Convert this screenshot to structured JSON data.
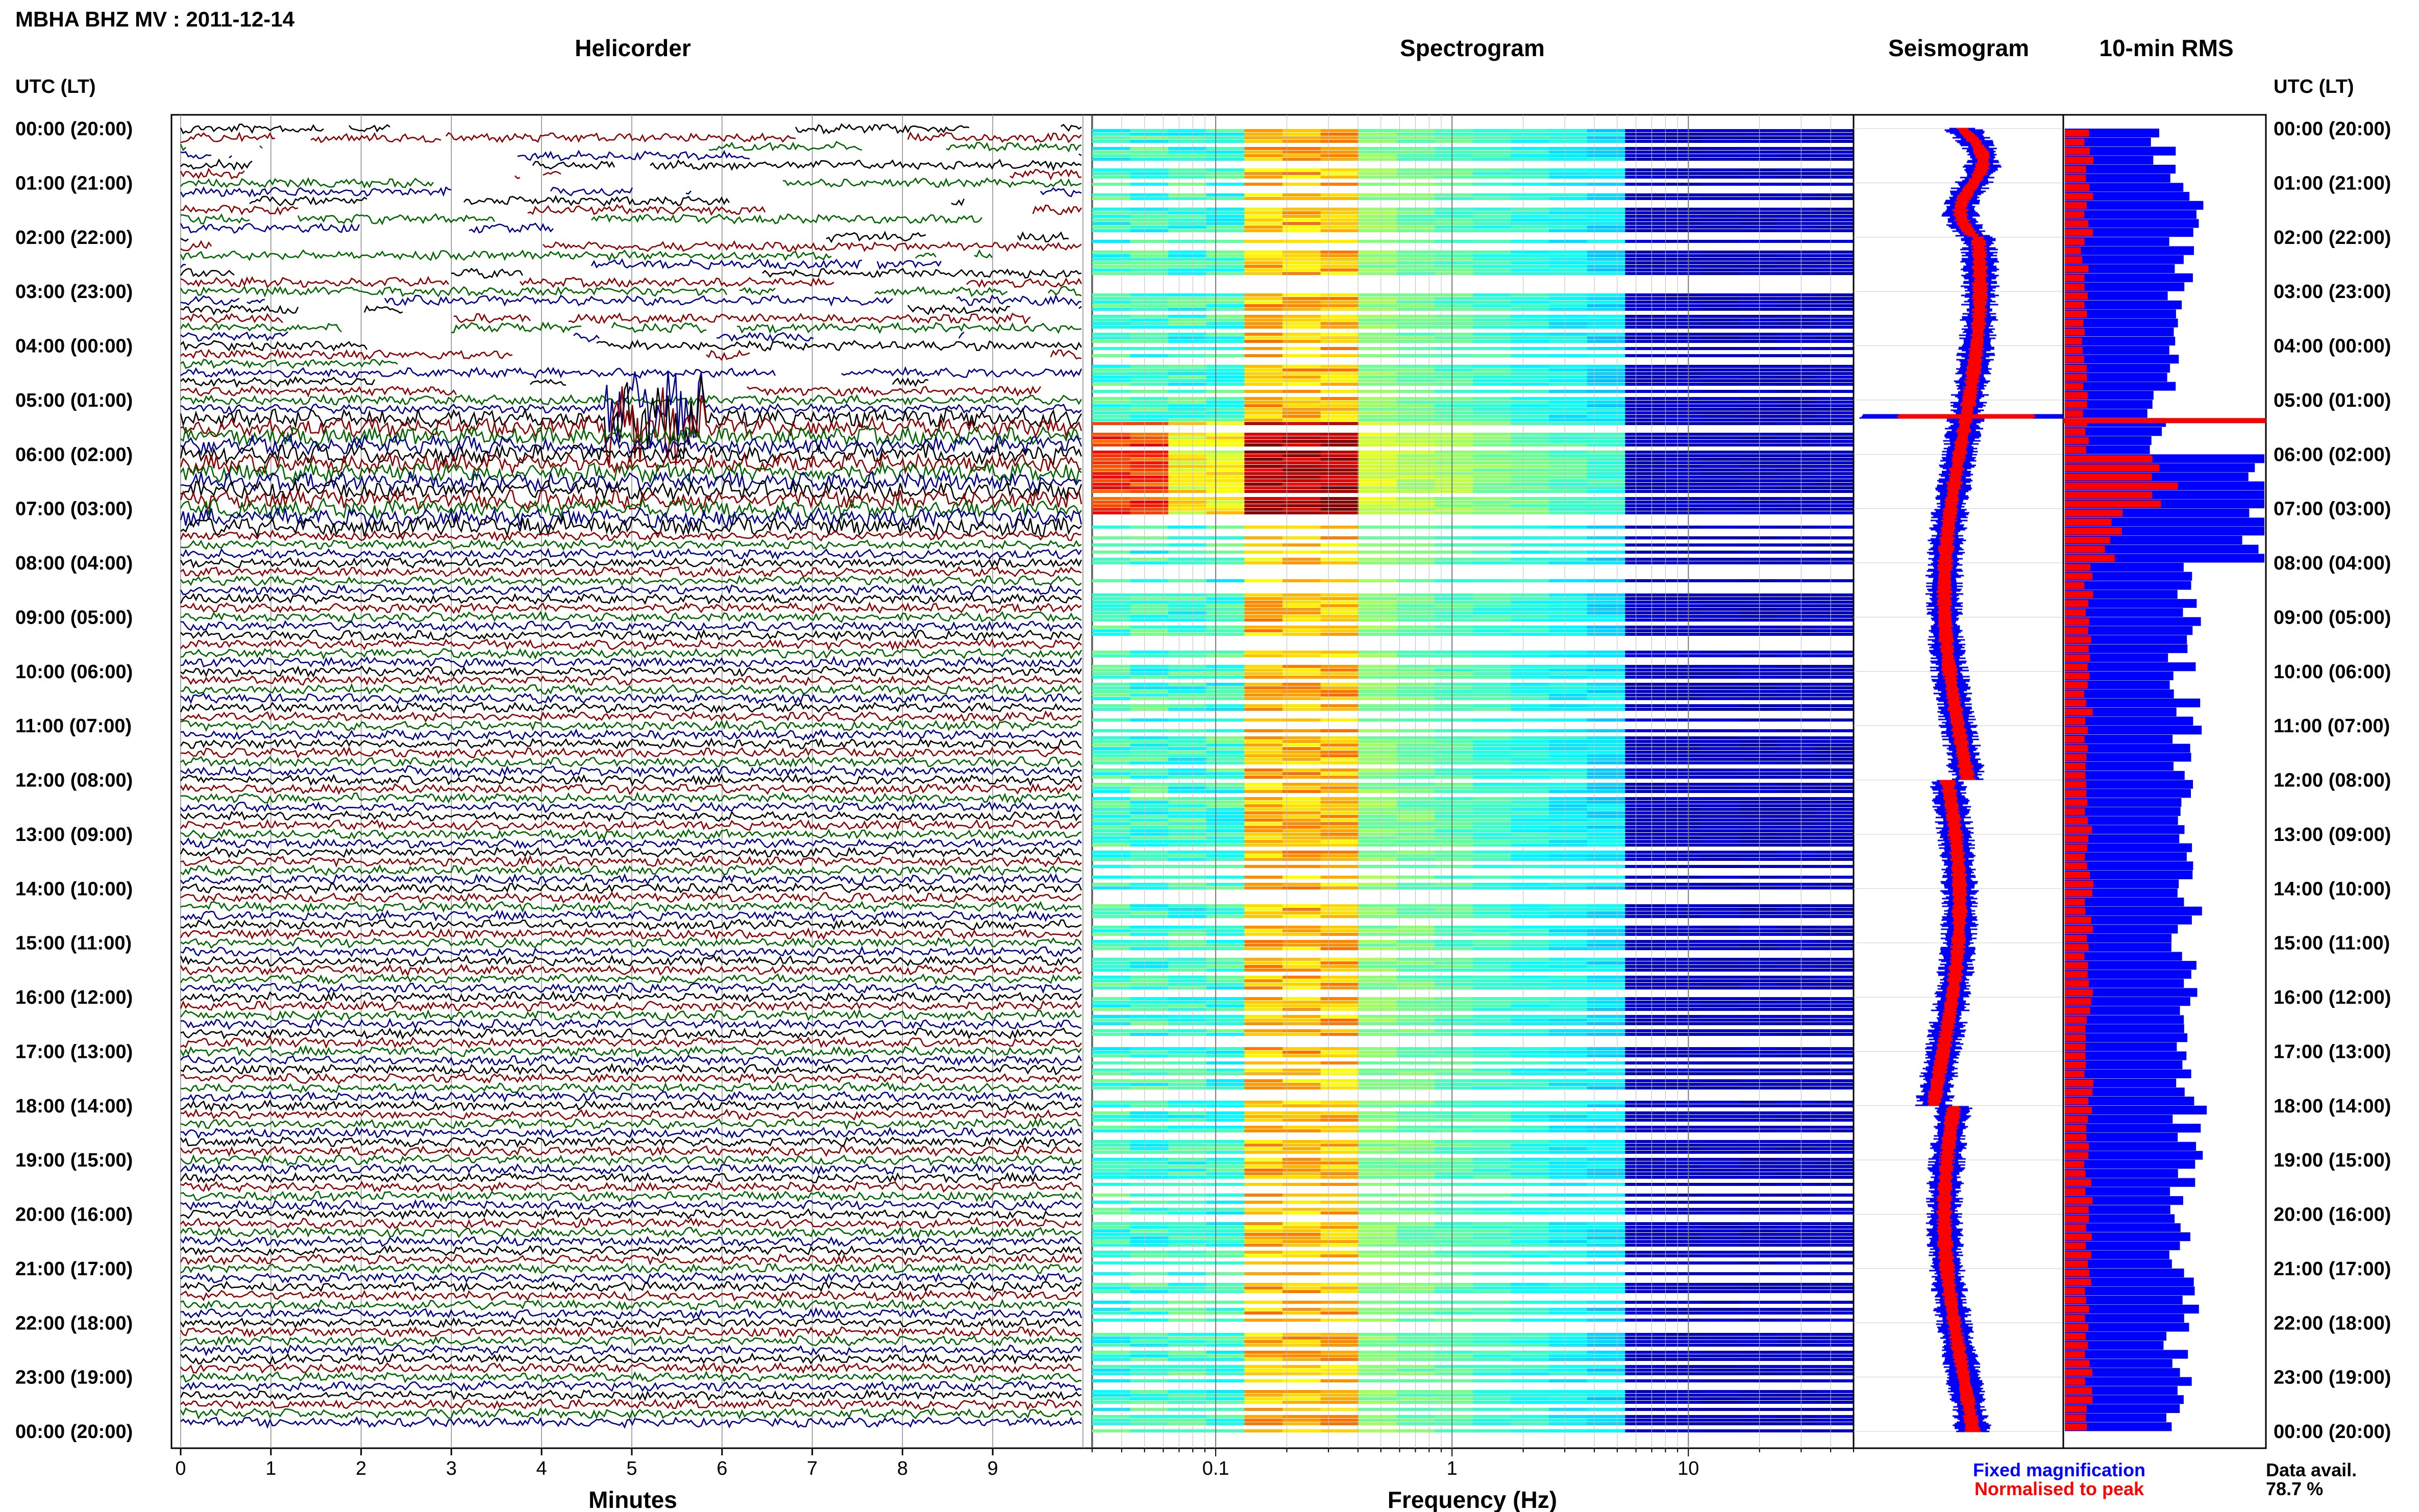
{
  "chart_data": {
    "type": "multi-panel seismic day plot",
    "title": "MBHA BHZ MV : 2011-12-14",
    "time_axis_label": "UTC (LT)",
    "time_labels": [
      "00:00 (20:00)",
      "01:00 (21:00)",
      "02:00 (22:00)",
      "03:00 (23:00)",
      "04:00 (00:00)",
      "05:00 (01:00)",
      "06:00 (02:00)",
      "07:00 (03:00)",
      "08:00 (04:00)",
      "09:00 (05:00)",
      "10:00 (06:00)",
      "11:00 (07:00)",
      "12:00 (08:00)",
      "13:00 (09:00)",
      "14:00 (10:00)",
      "15:00 (11:00)",
      "16:00 (12:00)",
      "17:00 (13:00)",
      "18:00 (14:00)",
      "19:00 (15:00)",
      "20:00 (16:00)",
      "21:00 (17:00)",
      "22:00 (18:00)",
      "23:00 (19:00)",
      "00:00 (20:00)"
    ],
    "panels": {
      "helicorder": {
        "title": "Helicorder",
        "xlabel": "Minutes",
        "xticks": [
          "0",
          "1",
          "2",
          "3",
          "4",
          "5",
          "6",
          "7",
          "8",
          "9"
        ],
        "xlim": [
          0,
          10
        ],
        "trace_colors": [
          "#000000",
          "#8b0000",
          "#006400",
          "#00008b"
        ],
        "event": {
          "utc_hour": 5.3,
          "minute_start": 4.7,
          "minute_end": 5.8
        }
      },
      "spectrogram": {
        "title": "Spectrogram",
        "xlabel": "Frequency (Hz)",
        "xscale": "log",
        "xticks": [
          "0.1",
          "1",
          "10"
        ],
        "xlim": [
          0.03,
          50
        ]
      },
      "seismogram": {
        "title": "Seismogram",
        "legend": [
          {
            "label": "Fixed magnification",
            "color": "#0000ff"
          },
          {
            "label": "Normalised to peak",
            "color": "#ff0000"
          }
        ]
      },
      "rms": {
        "title": "10-min RMS",
        "series": [
          {
            "name": "Fixed magnification",
            "color": "#0000ff"
          },
          {
            "name": "Normalised to peak",
            "color": "#ff0000"
          }
        ],
        "hourly_fixed_level": [
          0.5,
          0.65,
          0.6,
          0.55,
          0.5,
          0.45,
          1.0,
          1.0,
          0.6,
          0.6,
          0.6,
          0.6,
          0.6,
          0.6,
          0.6,
          0.6,
          0.6,
          0.62,
          0.62,
          0.62,
          0.6,
          0.6,
          0.58,
          0.58
        ],
        "hourly_normalised_level": [
          0.12,
          0.12,
          0.1,
          0.1,
          0.1,
          0.1,
          0.5,
          0.25,
          0.12,
          0.12,
          0.12,
          0.12,
          0.12,
          0.12,
          0.12,
          0.12,
          0.12,
          0.12,
          0.12,
          0.12,
          0.12,
          0.12,
          0.12,
          0.12
        ]
      }
    },
    "data_availability": {
      "label": "Data avail.",
      "value": "78.7 %"
    }
  }
}
